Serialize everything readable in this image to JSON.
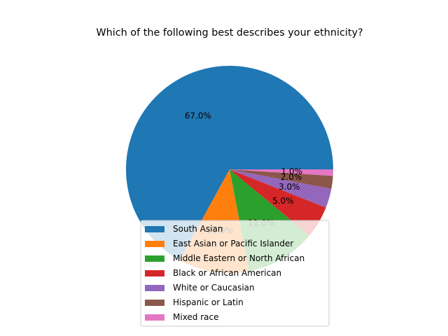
{
  "chart_data": {
    "type": "pie",
    "title": "Which of the following best describes your ethnicity?",
    "categories": [
      "South Asian",
      "East Asian or Pacific Islander",
      "Middle Eastern or North African",
      "Black or African American",
      "White or Caucasian",
      "Hispanic or Latin",
      "Mixed race"
    ],
    "values": [
      67.0,
      11.0,
      11.0,
      5.0,
      3.0,
      2.0,
      1.0
    ],
    "labels": [
      "67.0%",
      "11.0%",
      "11.0%",
      "5.0%",
      "3.0%",
      "2.0%",
      "1.0%"
    ],
    "colors": [
      "#1f77b4",
      "#ff7f0e",
      "#2ca02c",
      "#d62728",
      "#9467bd",
      "#8c564b",
      "#e377c2"
    ],
    "legend_position": "lower-center"
  }
}
